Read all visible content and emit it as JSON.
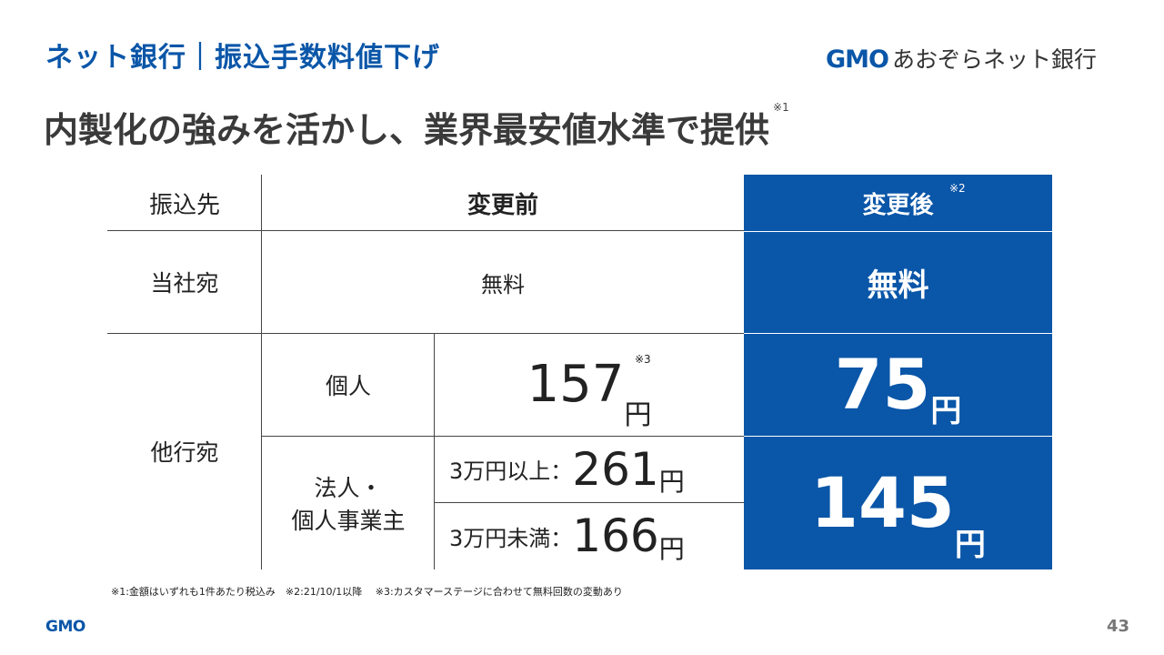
{
  "header": {
    "section_title": "ネット銀行｜振込手数料値下げ",
    "logo_brand": "GMO",
    "logo_bank": "あおぞらネット銀行"
  },
  "headline": {
    "text": "内製化の強みを活かし、業界最安値水準で提供",
    "note": "※1"
  },
  "table": {
    "header": {
      "col_destination": "振込先",
      "col_before": "変更前",
      "col_after": "変更後",
      "col_after_note": "※2"
    },
    "row_same_bank": {
      "label": "当社宛",
      "before": "無料",
      "after": "無料"
    },
    "row_other_bank": {
      "label": "他行宛",
      "individual": {
        "label": "個人",
        "before_amount": "157",
        "before_unit": "円",
        "before_note": "※3",
        "after_amount": "75",
        "after_unit": "円"
      },
      "corporate": {
        "label_line1": "法人・",
        "label_line2": "個人事業主",
        "tier1_label": "3万円以上：",
        "tier1_amount": "261",
        "tier1_unit": "円",
        "tier2_label": "3万円未満：",
        "tier2_amount": "166",
        "tier2_unit": "円",
        "after_amount": "145",
        "after_unit": "円"
      }
    }
  },
  "footnote": "※1:金額はいずれも1件あたり税込み　※2:21/10/1以降　 ※3:カスタマーステージに合わせて無料回数の変動あり",
  "footer": {
    "logo": "GMO",
    "page_number": "43"
  },
  "colors": {
    "accent_blue": "#0a56a8",
    "headline_gray": "#3a3a3a"
  }
}
